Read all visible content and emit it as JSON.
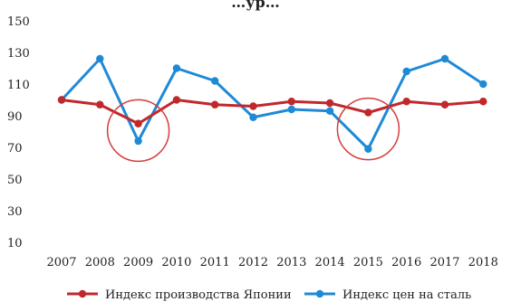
{
  "chart_data": {
    "type": "line",
    "title": "",
    "title_partial_visible": "…ур…",
    "xlabel": "",
    "ylabel": "",
    "categories": [
      "2007",
      "2008",
      "2009",
      "2010",
      "2011",
      "2012",
      "2013",
      "2014",
      "2015",
      "2016",
      "2017",
      "2018"
    ],
    "ylim": [
      10,
      150
    ],
    "yticks": [
      10,
      30,
      50,
      70,
      90,
      110,
      130,
      150
    ],
    "grid": false,
    "legend_position": "bottom",
    "series": [
      {
        "name": "Индекс производства Японии",
        "color": "#c0282c",
        "values": [
          100,
          97,
          85,
          100,
          97,
          96,
          99,
          98,
          92,
          99,
          97,
          99
        ]
      },
      {
        "name": "Индекс цен на сталь",
        "color": "#1e8ad6",
        "values": [
          100,
          126,
          74,
          120,
          112,
          89,
          94,
          93,
          69,
          118,
          126,
          110
        ]
      }
    ],
    "annotations": [
      {
        "type": "circle",
        "category": "2009",
        "color": "#d43c3c"
      },
      {
        "type": "circle",
        "category": "2015",
        "color": "#d43c3c"
      }
    ]
  }
}
